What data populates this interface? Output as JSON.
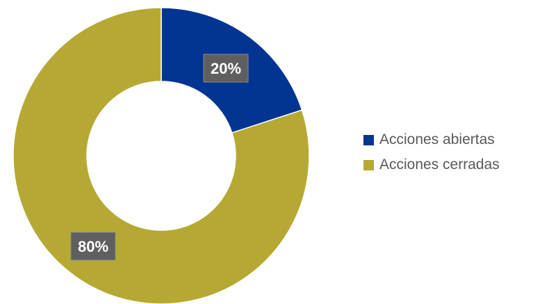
{
  "chart_data": {
    "type": "pie",
    "variant": "donut",
    "categories": [
      "Acciones abiertas",
      "Acciones cerradas"
    ],
    "values": [
      20,
      80
    ],
    "labels": [
      "20%",
      "80%"
    ],
    "colors": [
      "#023592",
      "#b5a934"
    ],
    "legend_position": "right",
    "title": ""
  }
}
